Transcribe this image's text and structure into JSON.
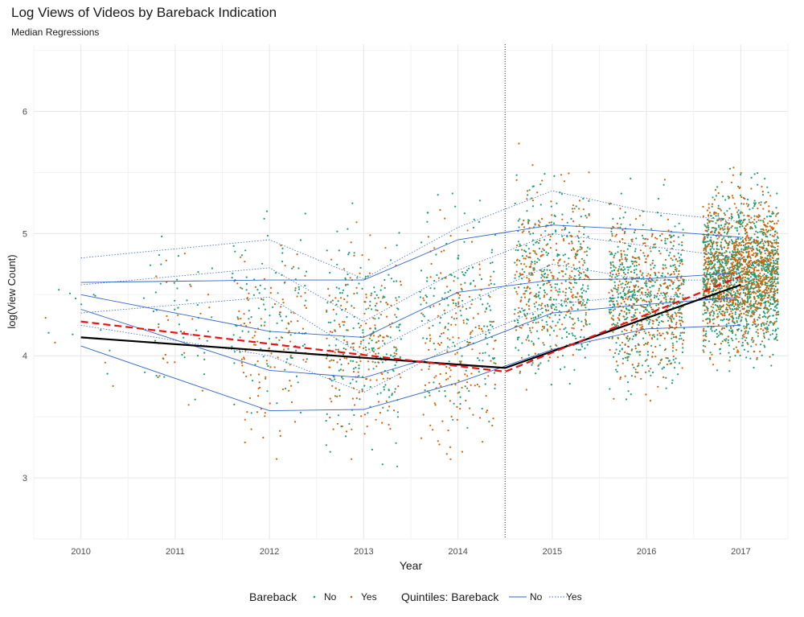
{
  "chart_data": {
    "type": "scatter",
    "title": "Log Views of Videos by Bareback Indication",
    "subtitle": "Median Regressions",
    "xlabel": "Year",
    "ylabel": "log(View Count)",
    "x_ticks": [
      "2010",
      "2011",
      "2012",
      "2013",
      "2014",
      "2015",
      "2016",
      "2017"
    ],
    "y_ticks": [
      3,
      4,
      5,
      6
    ],
    "xlim": [
      2009.5,
      2017.5
    ],
    "ylim": [
      2.5,
      6.55
    ],
    "grid": true,
    "vertical_reference_x": 2014.5,
    "colors": {
      "no_points": "#1b9e77",
      "yes_points": "#d95f02",
      "quantile_lines": "#3366cc",
      "median_no": "#000000",
      "median_yes": "#ee1111",
      "reference_line": "#333333"
    },
    "scatter_groups": [
      {
        "label": "No",
        "color": "#1b9e77",
        "center_y": [
          4.25,
          4.3,
          4.35,
          4.15,
          4.3,
          4.6,
          4.5,
          4.65
        ],
        "spread": [
          0.4,
          0.5,
          0.6,
          0.7,
          0.7,
          0.6,
          0.55,
          0.5
        ],
        "counts": [
          12,
          45,
          110,
          210,
          170,
          380,
          520,
          1300
        ]
      },
      {
        "label": "Yes",
        "color": "#d95f02",
        "center_y": [
          4.3,
          4.3,
          4.1,
          4.1,
          4.1,
          4.7,
          4.45,
          4.7
        ],
        "spread": [
          0.4,
          0.5,
          0.6,
          0.7,
          0.75,
          0.6,
          0.55,
          0.5
        ],
        "counts": [
          4,
          25,
          110,
          170,
          160,
          260,
          380,
          900
        ]
      }
    ],
    "median_series": [
      {
        "name": "No",
        "style": "solid",
        "color": "#000000",
        "points": [
          [
            2010,
            4.15
          ],
          [
            2014.5,
            3.9
          ],
          [
            2017,
            4.58
          ]
        ]
      },
      {
        "name": "Yes",
        "style": "dashed",
        "color": "#ee1111",
        "points": [
          [
            2010,
            4.28
          ],
          [
            2014.5,
            3.87
          ],
          [
            2017,
            4.65
          ]
        ]
      }
    ],
    "quintile_series": [
      {
        "name": "No",
        "style": "solid",
        "points": [
          [
            2010,
            4.6
          ],
          [
            2012,
            4.62
          ],
          [
            2013,
            4.62
          ],
          [
            2014,
            4.95
          ],
          [
            2015,
            5.07
          ],
          [
            2016,
            5.03
          ],
          [
            2017,
            4.97
          ]
        ]
      },
      {
        "name": "No",
        "style": "solid",
        "points": [
          [
            2010,
            4.5
          ],
          [
            2012,
            4.2
          ],
          [
            2013,
            4.15
          ],
          [
            2014,
            4.52
          ],
          [
            2015,
            4.62
          ],
          [
            2016,
            4.63
          ],
          [
            2017,
            4.68
          ]
        ]
      },
      {
        "name": "No",
        "style": "solid",
        "points": [
          [
            2010,
            4.38
          ],
          [
            2012,
            3.88
          ],
          [
            2013,
            3.82
          ],
          [
            2014,
            4.05
          ],
          [
            2015,
            4.35
          ],
          [
            2016,
            4.42
          ],
          [
            2017,
            4.48
          ]
        ]
      },
      {
        "name": "No",
        "style": "solid",
        "points": [
          [
            2010,
            4.08
          ],
          [
            2012,
            3.55
          ],
          [
            2013,
            3.56
          ],
          [
            2014,
            3.78
          ],
          [
            2015,
            4.05
          ],
          [
            2016,
            4.22
          ],
          [
            2017,
            4.25
          ]
        ]
      },
      {
        "name": "Yes",
        "style": "dotted",
        "points": [
          [
            2010,
            4.8
          ],
          [
            2012,
            4.95
          ],
          [
            2013,
            4.63
          ],
          [
            2014,
            5.05
          ],
          [
            2015,
            5.35
          ],
          [
            2016,
            5.18
          ],
          [
            2017,
            5.1
          ]
        ]
      },
      {
        "name": "Yes",
        "style": "dotted",
        "points": [
          [
            2010,
            4.58
          ],
          [
            2012,
            4.72
          ],
          [
            2013,
            4.28
          ],
          [
            2014,
            4.7
          ],
          [
            2015,
            5.0
          ],
          [
            2016,
            4.9
          ],
          [
            2017,
            4.8
          ]
        ]
      },
      {
        "name": "Yes",
        "style": "dotted",
        "points": [
          [
            2010,
            4.35
          ],
          [
            2012,
            4.48
          ],
          [
            2013,
            4.0
          ],
          [
            2014,
            4.4
          ],
          [
            2015,
            4.75
          ],
          [
            2016,
            4.62
          ],
          [
            2017,
            4.62
          ]
        ]
      },
      {
        "name": "Yes",
        "style": "dotted",
        "points": [
          [
            2010,
            4.25
          ],
          [
            2012,
            4.0
          ],
          [
            2013,
            3.7
          ],
          [
            2014,
            4.1
          ],
          [
            2015,
            4.42
          ],
          [
            2016,
            4.5
          ],
          [
            2017,
            4.45
          ]
        ]
      }
    ],
    "legend": {
      "placement": "bottom",
      "bareback_title": "Bareback",
      "quintiles_title": "Quintiles: Bareback",
      "no_label": "No",
      "yes_label": "Yes"
    }
  }
}
